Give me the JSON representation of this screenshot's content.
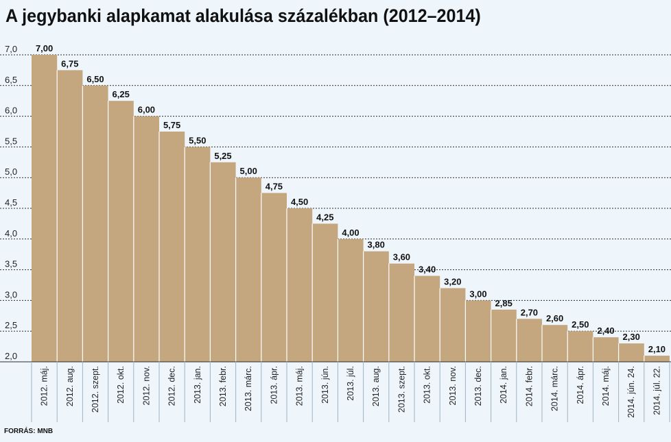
{
  "chart_data": {
    "type": "bar",
    "title": "A jegybanki alapkamat alakulása százalékban (2012–2014)",
    "xlabel": "",
    "ylabel": "",
    "ylim": [
      2.0,
      7.0
    ],
    "yticks": [
      "7,0",
      "6,5",
      "6,0",
      "5,5",
      "5,0",
      "4,5",
      "4,0",
      "3,5",
      "3,0",
      "2,5",
      "2,0"
    ],
    "grid": true,
    "categories": [
      "2012. máj.",
      "2012. aug.",
      "2012. szept.",
      "2012. okt.",
      "2012. nov.",
      "2012. dec.",
      "2013. jan.",
      "2013. febr.",
      "2013. márc.",
      "2013. ápr.",
      "2013. máj.",
      "2013. jún.",
      "2013. júl.",
      "2013. aug.",
      "2013. szept.",
      "2013. okt.",
      "2013. nov.",
      "2013. dec.",
      "2014. jan.",
      "2014. febr.",
      "2014. márc.",
      "2014. ápr.",
      "2014. máj.",
      "2014. jún. 24.",
      "2014. júl. 22."
    ],
    "values": [
      7.0,
      6.75,
      6.5,
      6.25,
      6.0,
      5.75,
      5.5,
      5.25,
      5.0,
      4.75,
      4.5,
      4.25,
      4.0,
      3.8,
      3.6,
      3.4,
      3.2,
      3.0,
      2.85,
      2.7,
      2.6,
      2.5,
      2.4,
      2.3,
      2.1
    ],
    "value_labels": [
      "7,00",
      "6,75",
      "6,50",
      "6,25",
      "6,00",
      "5,75",
      "5,50",
      "5,25",
      "5,00",
      "4,75",
      "4,50",
      "4,25",
      "4,00",
      "3,80",
      "3,60",
      "3,40",
      "3,20",
      "3,00",
      "2,85",
      "2,70",
      "2,60",
      "2,50",
      "2,40",
      "2,30",
      "2,10"
    ]
  },
  "source": "FORRÁS: MNB",
  "colors": {
    "bar": "#c4a67f",
    "bar_divider": "#ffffff",
    "grid": "#2b2b2b",
    "background": "#eef5fb"
  }
}
